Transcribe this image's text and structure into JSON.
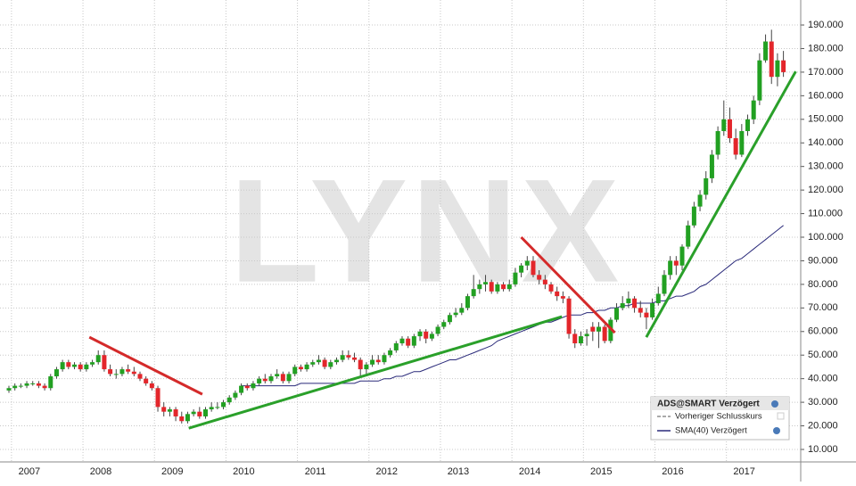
{
  "chart_data": {
    "type": "candlestick",
    "watermark": "LYNX",
    "series_name": "ADS@SMART Verzögert",
    "prev_close_label": "Vorheriger Schlusskurs",
    "up_color": "#22a022",
    "down_color": "#e3262b",
    "xlim": [
      2006.59,
      2017.79
    ],
    "xticks": [
      2007,
      2008,
      2009,
      2010,
      2011,
      2012,
      2013,
      2014,
      2015,
      2016,
      2017
    ],
    "ylim": [
      4.7,
      200.6
    ],
    "yticks": [
      {
        "value": 10,
        "label": "10.000"
      },
      {
        "value": 20,
        "label": "20.000"
      },
      {
        "value": 30,
        "label": "30.000"
      },
      {
        "value": 40,
        "label": "40.000"
      },
      {
        "value": 50,
        "label": "50.000"
      },
      {
        "value": 60,
        "label": "60.000"
      },
      {
        "value": 70,
        "label": "70.000"
      },
      {
        "value": 80,
        "label": "80.000"
      },
      {
        "value": 90,
        "label": "90.000"
      },
      {
        "value": 100,
        "label": "100.000"
      },
      {
        "value": 110,
        "label": "110.000"
      },
      {
        "value": 120,
        "label": "120.000"
      },
      {
        "value": 130,
        "label": "130.000"
      },
      {
        "value": 140,
        "label": "140.000"
      },
      {
        "value": 150,
        "label": "150.000"
      },
      {
        "value": 160,
        "label": "160.000"
      },
      {
        "value": 170,
        "label": "170.000"
      },
      {
        "value": 180,
        "label": "180.000"
      },
      {
        "value": 190,
        "label": "190.000"
      }
    ],
    "grid": true,
    "candles": [
      [
        35,
        37,
        34,
        36
      ],
      [
        36,
        38,
        35,
        37
      ],
      [
        37,
        38,
        36,
        37
      ],
      [
        37,
        39,
        36,
        38
      ],
      [
        38,
        39,
        37,
        38
      ],
      [
        38,
        39,
        36,
        37
      ],
      [
        37,
        38,
        35,
        36
      ],
      [
        36,
        42,
        35,
        41
      ],
      [
        41,
        45,
        40,
        44
      ],
      [
        44,
        48,
        43,
        47
      ],
      [
        47,
        48,
        44,
        45
      ],
      [
        45,
        47,
        44,
        46
      ],
      [
        46,
        47,
        43,
        44
      ],
      [
        44,
        47,
        43,
        46
      ],
      [
        46,
        48,
        45,
        47
      ],
      [
        47,
        52,
        46,
        50
      ],
      [
        50,
        52,
        43,
        44
      ],
      [
        44,
        46,
        41,
        42
      ],
      [
        42,
        44,
        40,
        42
      ],
      [
        42,
        45,
        41,
        44
      ],
      [
        44,
        46,
        42,
        43
      ],
      [
        43,
        45,
        41,
        42
      ],
      [
        42,
        43,
        39,
        40
      ],
      [
        40,
        41,
        37,
        38
      ],
      [
        38,
        39,
        35,
        36
      ],
      [
        36,
        37,
        26,
        28
      ],
      [
        28,
        30,
        24,
        26
      ],
      [
        26,
        28,
        24,
        27
      ],
      [
        27,
        28,
        22,
        24
      ],
      [
        24,
        26,
        21,
        22
      ],
      [
        22,
        26,
        21,
        25
      ],
      [
        25,
        27,
        24,
        26
      ],
      [
        26,
        28,
        23,
        24
      ],
      [
        24,
        28,
        23,
        27
      ],
      [
        27,
        30,
        26,
        28
      ],
      [
        28,
        30,
        27,
        28
      ],
      [
        28,
        31,
        27,
        30
      ],
      [
        30,
        33,
        29,
        32
      ],
      [
        32,
        35,
        31,
        34
      ],
      [
        34,
        38,
        33,
        37
      ],
      [
        37,
        38,
        35,
        36
      ],
      [
        36,
        39,
        35,
        38
      ],
      [
        38,
        41,
        37,
        40
      ],
      [
        40,
        42,
        38,
        39
      ],
      [
        39,
        42,
        38,
        41
      ],
      [
        41,
        44,
        40,
        42
      ],
      [
        42,
        43,
        38,
        39
      ],
      [
        39,
        43,
        38,
        42
      ],
      [
        42,
        46,
        41,
        45
      ],
      [
        45,
        46,
        43,
        44
      ],
      [
        44,
        47,
        43,
        46
      ],
      [
        46,
        48,
        45,
        47
      ],
      [
        47,
        50,
        46,
        48
      ],
      [
        48,
        49,
        44,
        45
      ],
      [
        45,
        48,
        44,
        47
      ],
      [
        47,
        49,
        46,
        48
      ],
      [
        48,
        52,
        47,
        50
      ],
      [
        50,
        52,
        48,
        49
      ],
      [
        49,
        51,
        47,
        48
      ],
      [
        48,
        49,
        41,
        44
      ],
      [
        44,
        47,
        42,
        46
      ],
      [
        46,
        50,
        45,
        48
      ],
      [
        48,
        50,
        46,
        47
      ],
      [
        47,
        51,
        46,
        50
      ],
      [
        50,
        53,
        49,
        52
      ],
      [
        52,
        56,
        51,
        55
      ],
      [
        55,
        58,
        54,
        57
      ],
      [
        57,
        58,
        53,
        54
      ],
      [
        54,
        59,
        53,
        58
      ],
      [
        58,
        61,
        56,
        60
      ],
      [
        60,
        61,
        55,
        57
      ],
      [
        57,
        60,
        56,
        59
      ],
      [
        59,
        63,
        58,
        62
      ],
      [
        62,
        65,
        61,
        64
      ],
      [
        64,
        68,
        63,
        67
      ],
      [
        67,
        70,
        66,
        68
      ],
      [
        68,
        72,
        67,
        70
      ],
      [
        70,
        76,
        69,
        75
      ],
      [
        75,
        84,
        74,
        78
      ],
      [
        78,
        82,
        76,
        80
      ],
      [
        80,
        84,
        77,
        81
      ],
      [
        81,
        82,
        76,
        77
      ],
      [
        77,
        81,
        76,
        80
      ],
      [
        80,
        81,
        77,
        78
      ],
      [
        78,
        82,
        77,
        80
      ],
      [
        80,
        87,
        79,
        85
      ],
      [
        85,
        89,
        83,
        88
      ],
      [
        88,
        92,
        86,
        90
      ],
      [
        90,
        92,
        83,
        84
      ],
      [
        84,
        86,
        80,
        82
      ],
      [
        82,
        84,
        78,
        80
      ],
      [
        80,
        81,
        76,
        77
      ],
      [
        77,
        79,
        73,
        75
      ],
      [
        75,
        77,
        72,
        74
      ],
      [
        74,
        75,
        57,
        59
      ],
      [
        59,
        61,
        53,
        55
      ],
      [
        55,
        60,
        54,
        58
      ],
      [
        58,
        61,
        54,
        59
      ],
      [
        62,
        64,
        56,
        60
      ],
      [
        60,
        64,
        53,
        62
      ],
      [
        62,
        63,
        55,
        56
      ],
      [
        56,
        66,
        55,
        65
      ],
      [
        65,
        72,
        64,
        70
      ],
      [
        70,
        75,
        69,
        72
      ],
      [
        72,
        77,
        70,
        74
      ],
      [
        74,
        75,
        68,
        70
      ],
      [
        70,
        73,
        66,
        68
      ],
      [
        68,
        70,
        61,
        66
      ],
      [
        66,
        74,
        65,
        72
      ],
      [
        72,
        79,
        71,
        76
      ],
      [
        76,
        86,
        75,
        84
      ],
      [
        84,
        92,
        82,
        90
      ],
      [
        90,
        92,
        84,
        88
      ],
      [
        88,
        97,
        86,
        96
      ],
      [
        96,
        107,
        95,
        105
      ],
      [
        105,
        115,
        104,
        113
      ],
      [
        113,
        120,
        111,
        118
      ],
      [
        118,
        128,
        116,
        125
      ],
      [
        125,
        137,
        123,
        135
      ],
      [
        135,
        147,
        133,
        145
      ],
      [
        145,
        158,
        143,
        150
      ],
      [
        150,
        155,
        140,
        142
      ],
      [
        142,
        146,
        133,
        135
      ],
      [
        135,
        148,
        134,
        145
      ],
      [
        145,
        152,
        143,
        150
      ],
      [
        150,
        160,
        148,
        158
      ],
      [
        158,
        178,
        156,
        175
      ],
      [
        175,
        186,
        174,
        183
      ],
      [
        183,
        188,
        165,
        168
      ],
      [
        168,
        178,
        164,
        175
      ],
      [
        175,
        179,
        168,
        170
      ]
    ],
    "sma": {
      "name": "SMA(40) Verzögert",
      "color": "#2a2a7a",
      "values": [
        null,
        null,
        null,
        null,
        null,
        null,
        null,
        null,
        null,
        null,
        null,
        null,
        null,
        null,
        null,
        null,
        null,
        null,
        null,
        null,
        null,
        null,
        null,
        null,
        null,
        null,
        null,
        null,
        null,
        null,
        null,
        null,
        null,
        null,
        null,
        null,
        null,
        null,
        null,
        37,
        37,
        37,
        37,
        37,
        37,
        37,
        37,
        37,
        37,
        38,
        38,
        38,
        38,
        38,
        38,
        38,
        38,
        38,
        38,
        39,
        39,
        39,
        39,
        40,
        40,
        41,
        41,
        42,
        43,
        43,
        44,
        45,
        46,
        47,
        48,
        48,
        49,
        50,
        51,
        52,
        53,
        54,
        56,
        57,
        58,
        59,
        60,
        61,
        62,
        63,
        64,
        64,
        65,
        66,
        67,
        67,
        67,
        68,
        68,
        69,
        69,
        70,
        70,
        71,
        71,
        72,
        72,
        72,
        72,
        73,
        73,
        74,
        75,
        75,
        76,
        77,
        79,
        80,
        82,
        84,
        86,
        88,
        90,
        91,
        93,
        95,
        97,
        99,
        101,
        103,
        105
      ]
    },
    "trendlines": [
      {
        "color": "#d42a2a",
        "x": [
          2007.84,
          2009.42
        ],
        "y": [
          57.6,
          33.4
        ]
      },
      {
        "color": "#2aa02a",
        "x": [
          2009.23,
          2014.45
        ],
        "y": [
          19.0,
          66.3
        ]
      },
      {
        "color": "#d42a2a",
        "x": [
          2013.88,
          2015.19
        ],
        "y": [
          100,
          59.5
        ]
      },
      {
        "color": "#2aa02a",
        "x": [
          2015.63,
          2017.72
        ],
        "y": [
          57.6,
          170.3
        ]
      }
    ]
  }
}
